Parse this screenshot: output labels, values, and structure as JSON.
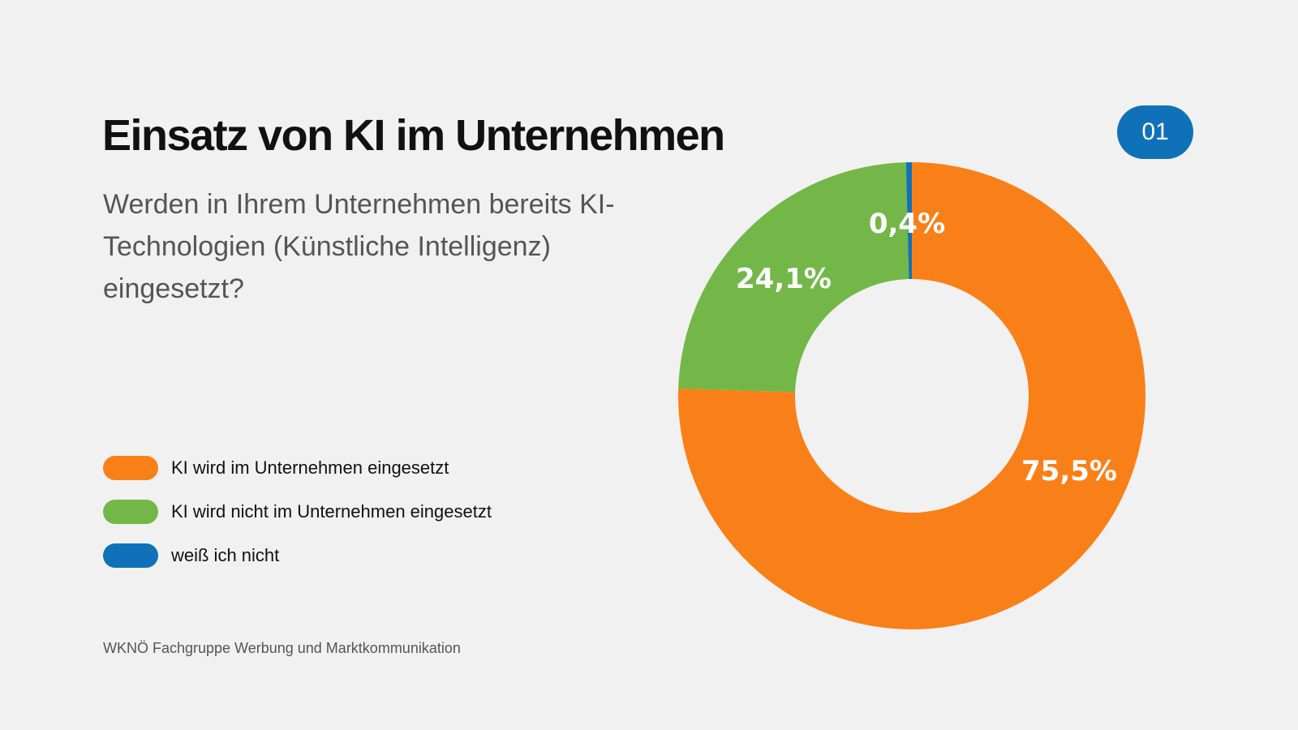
{
  "badge": "01",
  "chart_data": {
    "type": "pie",
    "variant": "donut",
    "title": "Einsatz von KI im Unternehmen",
    "subtitle": "Werden in Ihrem Unternehmen bereits KI-Technologien (Künstliche Intelligenz) eingesetzt?",
    "legend_position": "left",
    "slices": [
      {
        "name": "KI wird im Unternehmen eingesetzt",
        "value": 75.5,
        "label": "75,5%",
        "color": "#f98018"
      },
      {
        "name": "KI wird nicht im Unternehmen eingesetzt",
        "value": 24.1,
        "label": "24,1%",
        "color": "#74b749"
      },
      {
        "name": "weiß ich nicht",
        "value": 0.4,
        "label": "0,4%",
        "color": "#0f72b8"
      }
    ]
  },
  "footer": "WKNÖ Fachgruppe Werbung und Marktkommunikation"
}
